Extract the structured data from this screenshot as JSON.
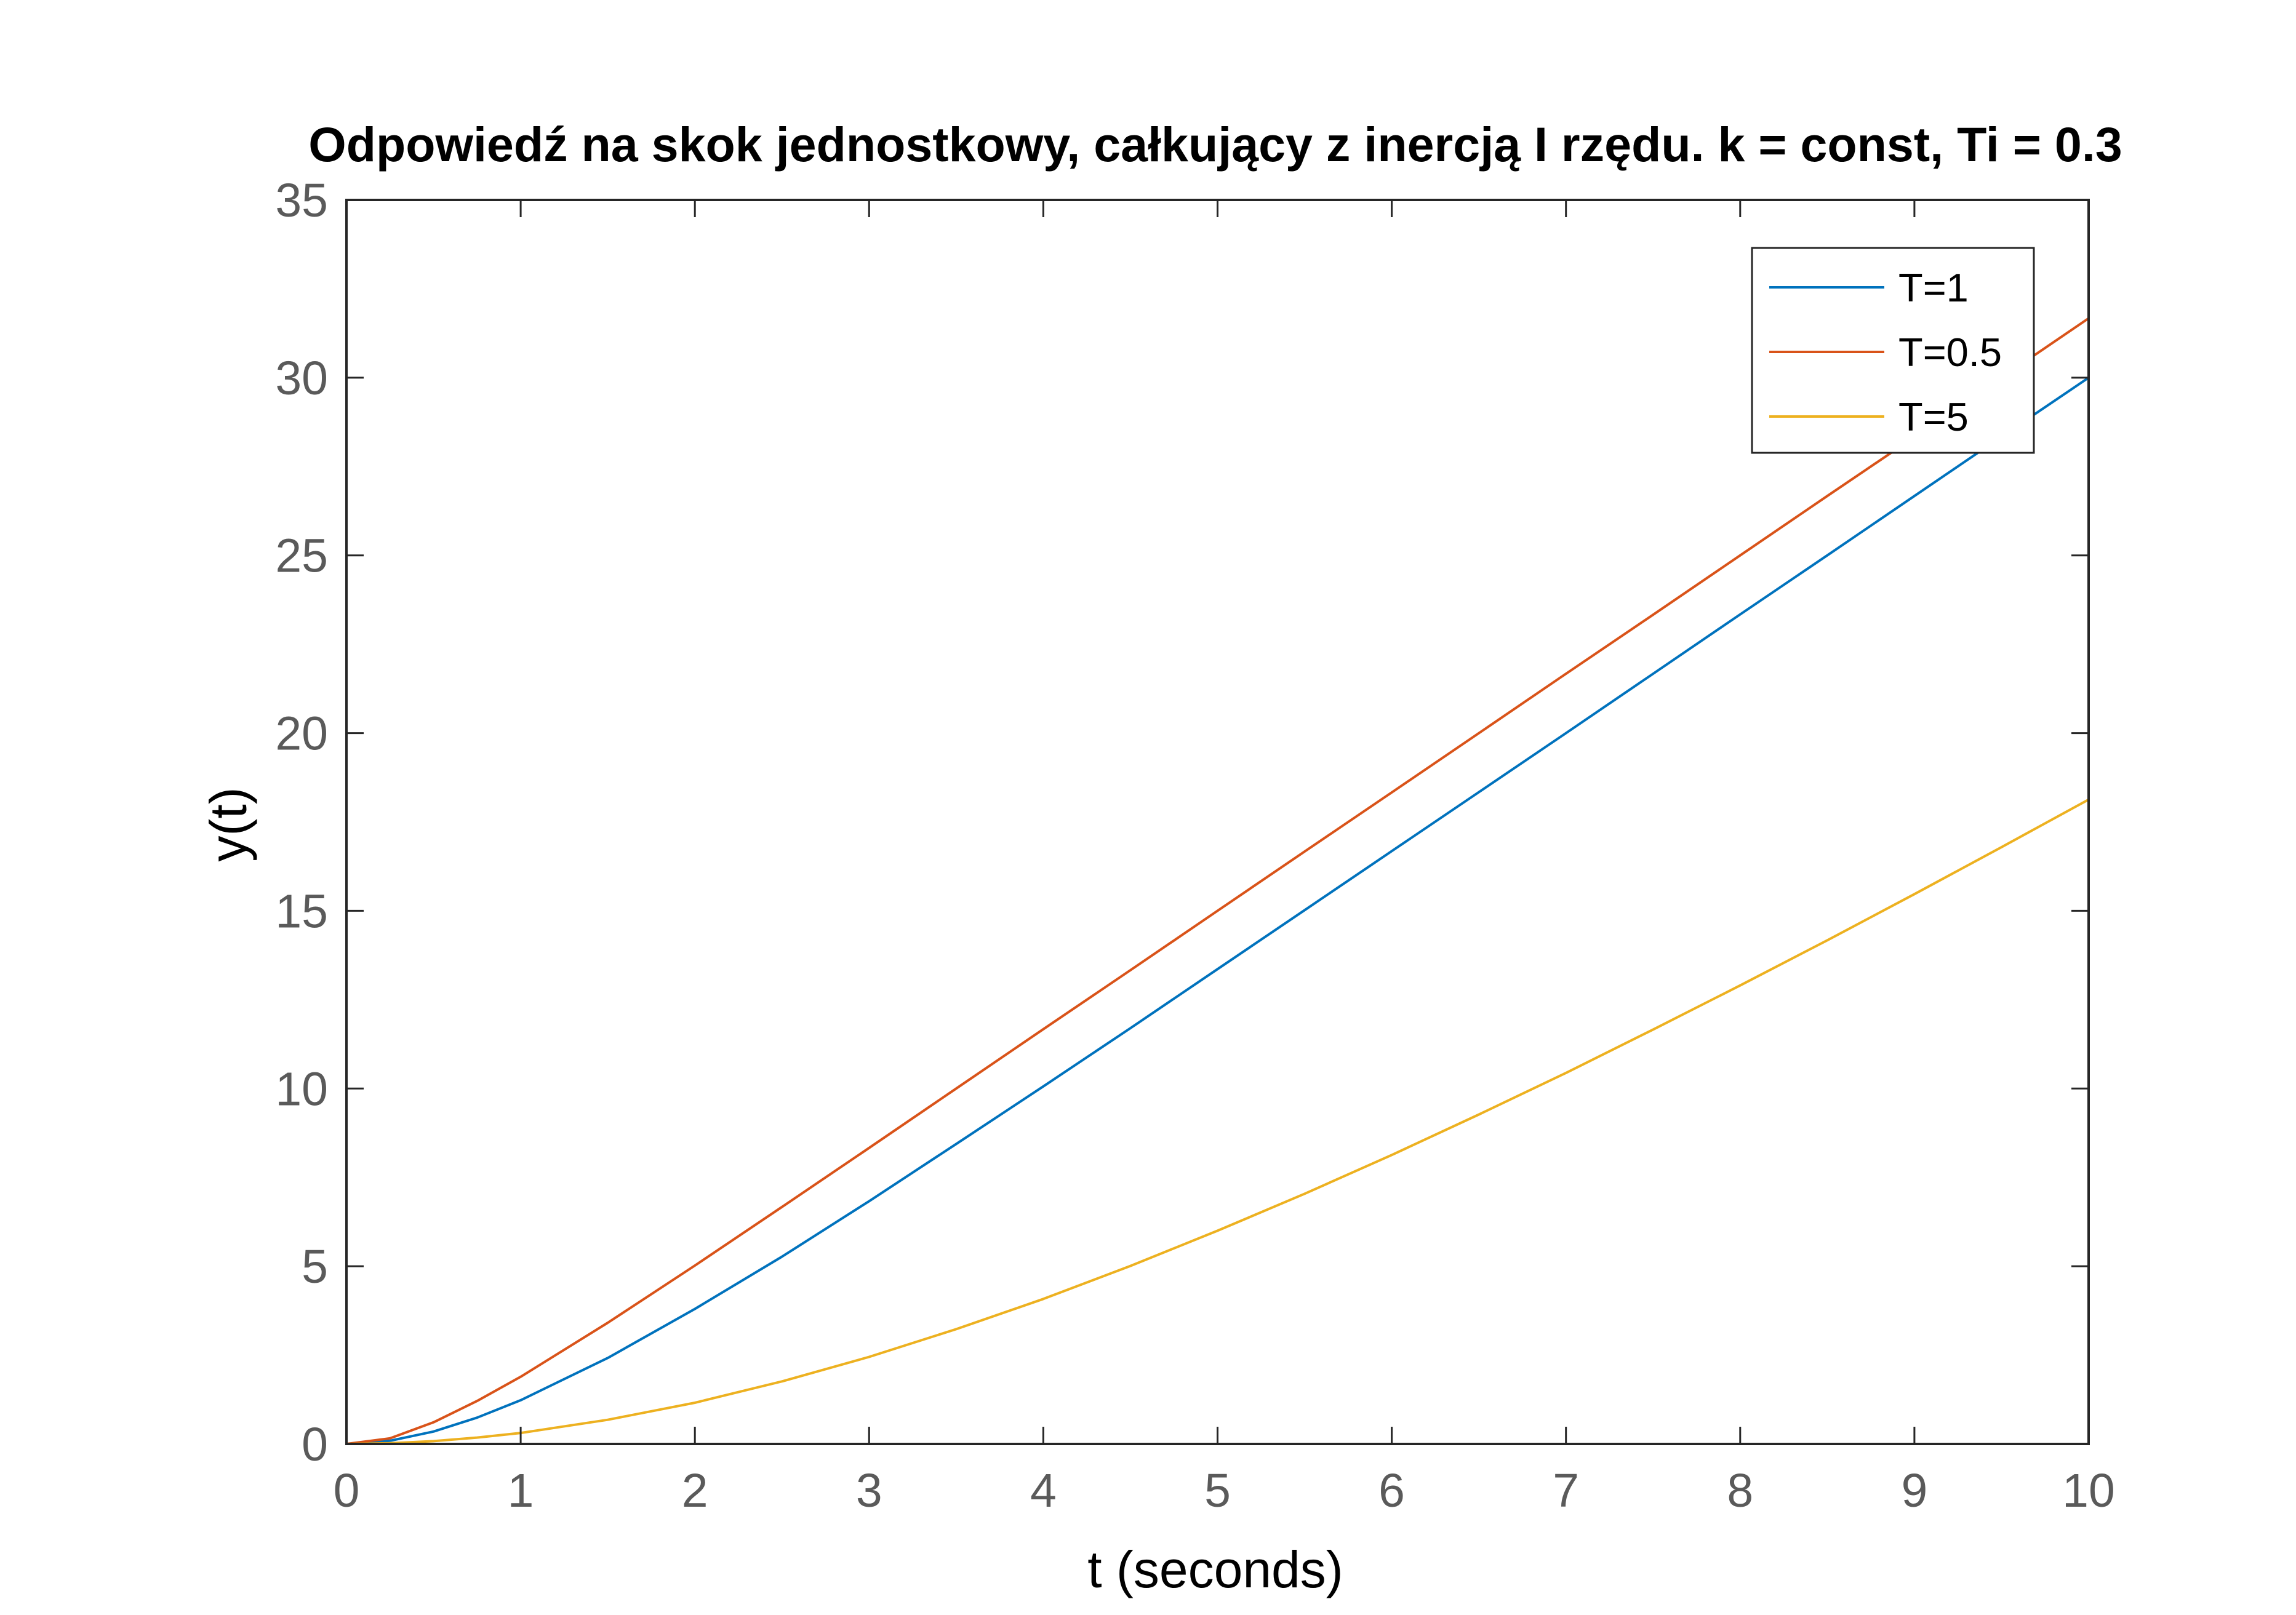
{
  "chart_data": {
    "type": "line",
    "title": "Odpowiedź na skok jednostkowy, całkujący z inercją I rzędu. k = const, Ti = 0.3",
    "xlabel": "t (seconds)",
    "ylabel": "y(t)",
    "xlim": [
      0,
      10
    ],
    "ylim": [
      0,
      35
    ],
    "xticks": [
      "0",
      "1",
      "2",
      "3",
      "4",
      "5",
      "6",
      "7",
      "8",
      "9",
      "10"
    ],
    "yticks": [
      "0",
      "5",
      "10",
      "15",
      "20",
      "25",
      "30",
      "35"
    ],
    "grid": false,
    "legend_position": "top-right",
    "x": [
      0,
      0.25,
      0.5,
      0.75,
      1,
      1.5,
      2,
      2.5,
      3,
      3.5,
      4,
      4.5,
      5,
      5.5,
      6,
      6.5,
      7,
      7.5,
      8,
      8.5,
      9,
      9.5,
      10
    ],
    "series": [
      {
        "name": "T=1",
        "color": "#0072BD",
        "values": [
          0,
          0.09,
          0.35,
          0.74,
          1.23,
          2.42,
          3.8,
          5.27,
          6.83,
          8.44,
          10.06,
          11.7,
          13.36,
          15.02,
          16.68,
          18.34,
          20.0,
          21.67,
          23.34,
          25.0,
          26.67,
          28.34,
          30.0
        ]
      },
      {
        "name": "T=0.5",
        "color": "#D95319",
        "values": [
          0,
          0.16,
          0.61,
          1.21,
          1.89,
          3.41,
          5.02,
          6.67,
          8.33,
          10.0,
          11.67,
          13.33,
          15.0,
          16.67,
          18.33,
          20.0,
          21.67,
          23.33,
          25.0,
          26.67,
          28.33,
          30.0,
          31.67
        ]
      },
      {
        "name": "T=5",
        "color": "#EDB120",
        "values": [
          0,
          0.02,
          0.08,
          0.18,
          0.31,
          0.68,
          1.16,
          1.76,
          2.45,
          3.23,
          4.08,
          5.01,
          6.0,
          7.04,
          8.13,
          9.27,
          10.44,
          11.66,
          12.9,
          14.17,
          15.47,
          16.79,
          18.13
        ]
      }
    ]
  }
}
